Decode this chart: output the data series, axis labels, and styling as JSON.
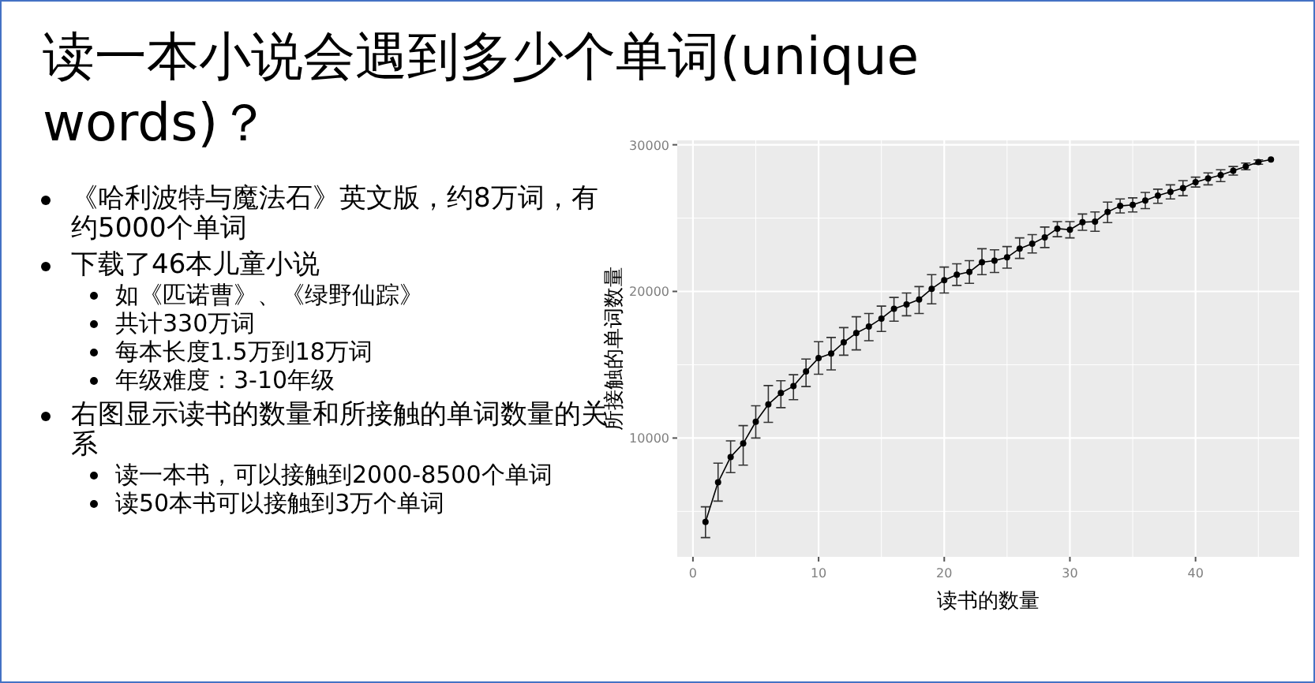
{
  "chart_data": {
    "type": "line",
    "title": "读一本小说会遇到多少个单词(unique words)？",
    "xlabel": "读书的数量",
    "ylabel": "所接触的单词数量",
    "annotations": [
      "《哈利波特与魔法石》英文版，约8万词，有约5000个单词",
      "下载了46本儿童小说",
      "如《匹诺曹》、《绿野仙踪》",
      "共计330万词",
      "每本长度1.5万到18万词",
      "年级难度：3-10年级",
      "右图显示读书的数量和所接触的单词数量的关系",
      "读一本书，可以接触到2000-8500个单词",
      "读50本书可以接触到3万个单词"
    ],
    "x": [
      1,
      2,
      3,
      4,
      5,
      6,
      7,
      8,
      9,
      10,
      11,
      12,
      13,
      14,
      15,
      16,
      17,
      18,
      19,
      20,
      21,
      22,
      23,
      24,
      25,
      26,
      27,
      28,
      29,
      30,
      31,
      32,
      33,
      34,
      35,
      36,
      37,
      38,
      39,
      40,
      41,
      42,
      43,
      44,
      45,
      46
    ],
    "series": [
      {
        "color": "#000000",
        "values": [
          4280,
          6980,
          8710,
          9630,
          11110,
          12290,
          13070,
          13540,
          14540,
          15460,
          15760,
          16530,
          17160,
          17600,
          18150,
          18820,
          19110,
          19450,
          20180,
          20770,
          21140,
          21330,
          21990,
          22100,
          22320,
          22920,
          23250,
          23690,
          24280,
          24210,
          24720,
          24760,
          25420,
          25830,
          25900,
          26200,
          26530,
          26790,
          27050,
          27450,
          27710,
          27930,
          28230,
          28520,
          28820,
          29000
        ],
        "errors": [
          [
            3210,
            5310
          ],
          [
            5700,
            8290
          ],
          [
            7640,
            9810
          ],
          [
            8150,
            10850
          ],
          [
            10000,
            12200
          ],
          [
            11070,
            13580
          ],
          [
            12070,
            13910
          ],
          [
            12620,
            14320
          ],
          [
            13510,
            15390
          ],
          [
            14350,
            16570
          ],
          [
            14650,
            16860
          ],
          [
            15650,
            17530
          ],
          [
            16010,
            18270
          ],
          [
            16640,
            18490
          ],
          [
            17270,
            19000
          ],
          [
            17970,
            19590
          ],
          [
            18340,
            19890
          ],
          [
            18490,
            20330
          ],
          [
            19150,
            21140
          ],
          [
            19890,
            21660
          ],
          [
            20410,
            21880
          ],
          [
            20550,
            22100
          ],
          [
            21140,
            22910
          ],
          [
            21290,
            22840
          ],
          [
            21590,
            23060
          ],
          [
            22250,
            23650
          ],
          [
            22620,
            23870
          ],
          [
            22990,
            24390
          ],
          [
            23730,
            24760
          ],
          [
            23650,
            24760
          ],
          [
            24170,
            25280
          ],
          [
            24100,
            25420
          ],
          [
            24690,
            26090
          ],
          [
            25350,
            26310
          ],
          [
            25420,
            26380
          ],
          [
            25650,
            26750
          ],
          [
            26010,
            26970
          ],
          [
            26310,
            27270
          ],
          [
            26530,
            27560
          ],
          [
            27120,
            27790
          ],
          [
            27270,
            28080
          ],
          [
            27490,
            28300
          ],
          [
            27930,
            28520
          ],
          [
            28300,
            28750
          ],
          [
            28670,
            28970
          ],
          null
        ]
      }
    ],
    "xlim": [
      -1.25,
      48.25
    ],
    "xticks": [
      0,
      10,
      20,
      30,
      40
    ],
    "ylim": [
      1900,
      30300
    ],
    "yticks": [
      10000,
      20000,
      30000
    ],
    "grid": true,
    "marker": "circle",
    "line_style": "solid"
  }
}
